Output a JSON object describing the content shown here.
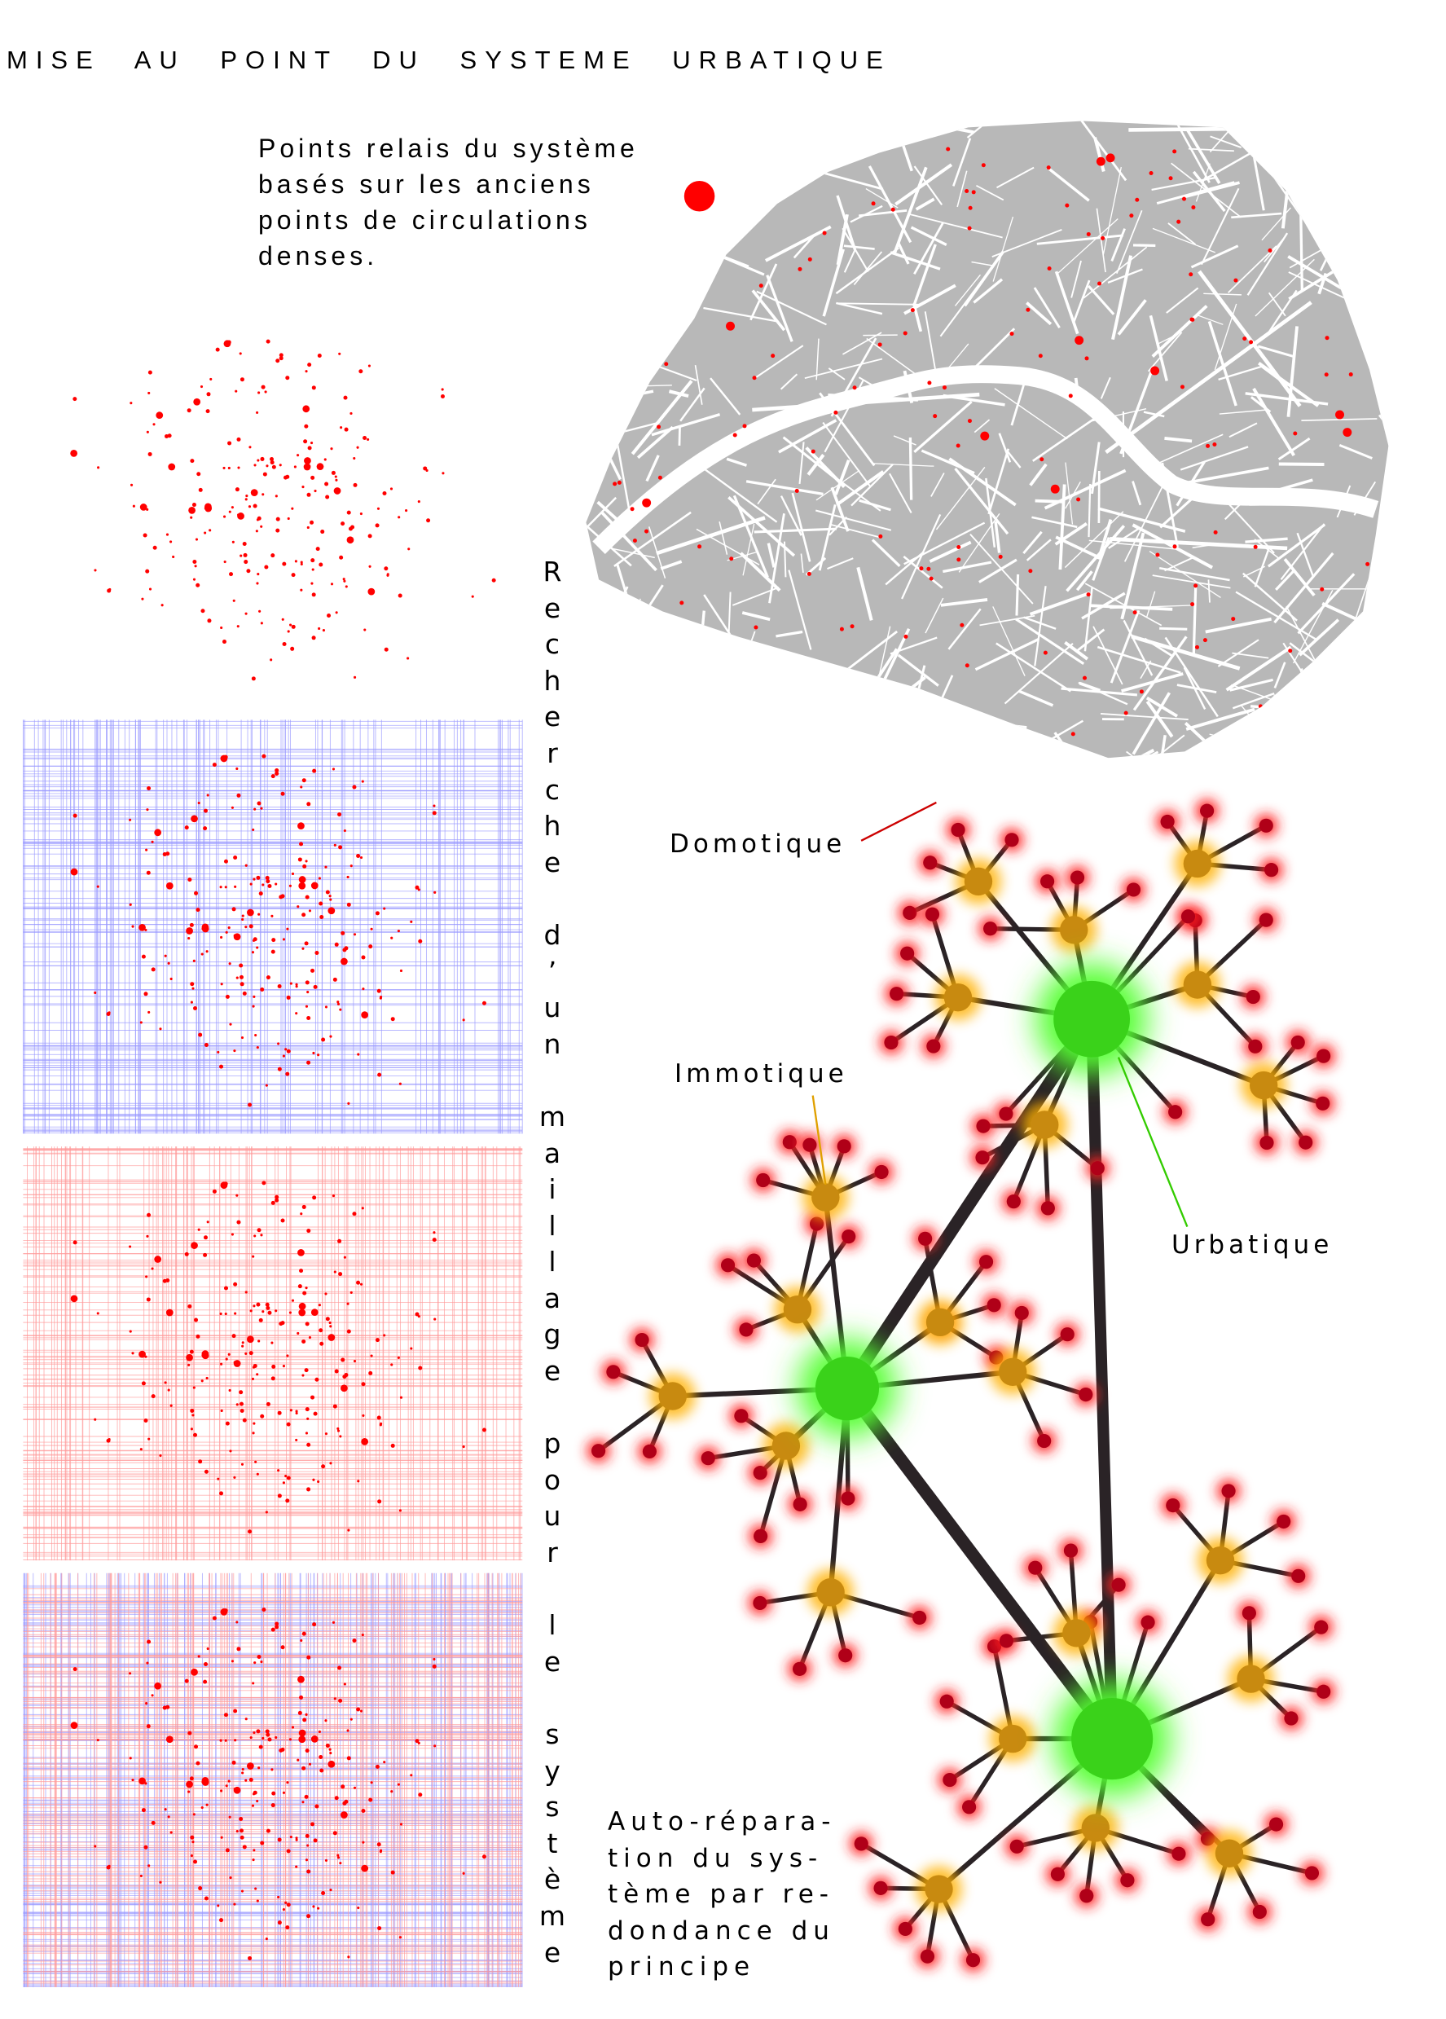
{
  "title": "MISE AU POINT DU SYSTEME URBATIQUE",
  "intro": {
    "lines": [
      "Points relais du système",
      "basés sur les anciens",
      "points de circulations",
      "denses."
    ],
    "legend_color": "#ff0000"
  },
  "vertical_caption": "Recherche d’un maillage pour le système",
  "labels": {
    "domotique": "Domotique",
    "immotique": "Immotique",
    "urbatique": "Urbatique"
  },
  "auto_repair": [
    "Auto-répara-",
    "tion du sys-",
    "tème par re-",
    "dondance du",
    "principe"
  ],
  "colors": {
    "relay": "#ff0000",
    "domotique": "#cc0000",
    "immotique": "#e0a000",
    "urbatique": "#33cc00",
    "grid_blue": "#9999ff",
    "grid_pink": "#ff9999",
    "map": "#b8b8b8"
  }
}
